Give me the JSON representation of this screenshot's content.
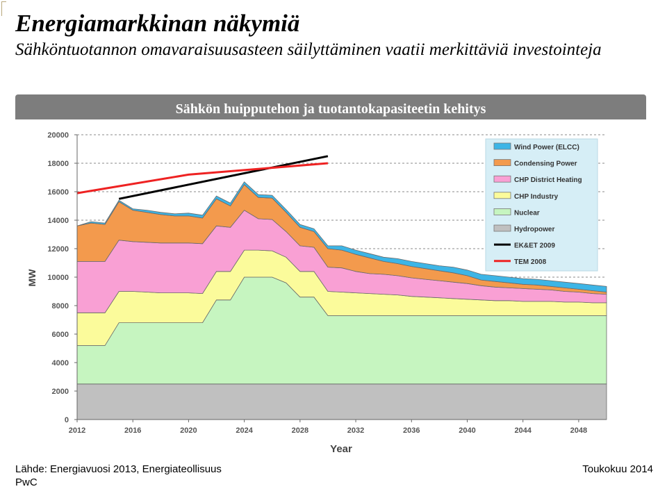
{
  "page": {
    "title": "Energiamarkkinan näkymiä",
    "subtitle": "Sähköntuotannon omavaraisuusasteen säilyttäminen vaatii merkittäviä investointeja",
    "banner": "Sähkön huipputehon ja tuotantokapasiteetin kehitys",
    "source": "Lähde: Energiavuosi 2013, Energiateollisuus",
    "company": "PwC",
    "date": "Toukokuu 2014"
  },
  "chart_data": {
    "type": "area",
    "xlabel": "Year",
    "ylabel": "MW",
    "xlim": [
      2012,
      2050
    ],
    "ylim": [
      0,
      20000
    ],
    "x_ticks": [
      2012,
      2016,
      2020,
      2024,
      2028,
      2032,
      2036,
      2040,
      2044,
      2048
    ],
    "y_ticks": [
      0,
      2000,
      4000,
      6000,
      8000,
      10000,
      12000,
      14000,
      16000,
      18000,
      20000
    ],
    "grid": "horizontal-dashed",
    "legend_position": "top-right",
    "x": [
      2012,
      2013,
      2014,
      2015,
      2016,
      2017,
      2018,
      2019,
      2020,
      2021,
      2022,
      2023,
      2024,
      2025,
      2026,
      2027,
      2028,
      2029,
      2030,
      2031,
      2032,
      2033,
      2034,
      2035,
      2036,
      2037,
      2038,
      2039,
      2040,
      2041,
      2042,
      2043,
      2044,
      2045,
      2046,
      2047,
      2048,
      2049,
      2050
    ],
    "series": [
      {
        "name": "Hydropower",
        "kind": "stack",
        "color": "#c0c0c0",
        "values": [
          2500,
          2500,
          2500,
          2500,
          2500,
          2500,
          2500,
          2500,
          2500,
          2500,
          2500,
          2500,
          2500,
          2500,
          2500,
          2500,
          2500,
          2500,
          2500,
          2500,
          2500,
          2500,
          2500,
          2500,
          2500,
          2500,
          2500,
          2500,
          2500,
          2500,
          2500,
          2500,
          2500,
          2500,
          2500,
          2500,
          2500,
          2500,
          2500
        ]
      },
      {
        "name": "Nuclear",
        "kind": "stack",
        "color": "#c6f5c0",
        "values": [
          2700,
          2700,
          2700,
          4300,
          4300,
          4300,
          4300,
          4300,
          4300,
          4300,
          5900,
          5900,
          7500,
          7500,
          7500,
          7100,
          6100,
          6100,
          4800,
          4800,
          4800,
          4800,
          4800,
          4800,
          4800,
          4800,
          4800,
          4800,
          4800,
          4800,
          4800,
          4800,
          4800,
          4800,
          4800,
          4800,
          4800,
          4800,
          4800
        ]
      },
      {
        "name": "CHP Industry",
        "kind": "stack",
        "color": "#fbfb9b",
        "values": [
          2300,
          2300,
          2300,
          2200,
          2200,
          2150,
          2100,
          2100,
          2100,
          2050,
          2000,
          2000,
          1900,
          1900,
          1850,
          1800,
          1800,
          1800,
          1700,
          1650,
          1600,
          1550,
          1500,
          1450,
          1350,
          1300,
          1250,
          1200,
          1150,
          1100,
          1050,
          1050,
          1000,
          1000,
          1000,
          950,
          950,
          900,
          900
        ]
      },
      {
        "name": "CHP District Heating",
        "kind": "stack",
        "color": "#f9a0d4",
        "values": [
          3600,
          3600,
          3600,
          3600,
          3500,
          3500,
          3500,
          3500,
          3500,
          3500,
          3200,
          3100,
          2800,
          2200,
          2200,
          1800,
          1800,
          1700,
          1700,
          1700,
          1500,
          1400,
          1400,
          1350,
          1300,
          1250,
          1200,
          1150,
          1100,
          1000,
          950,
          900,
          900,
          850,
          800,
          750,
          700,
          650,
          600
        ]
      },
      {
        "name": "Condensing Power",
        "kind": "stack",
        "color": "#f39a4d",
        "values": [
          2500,
          2700,
          2600,
          2700,
          2200,
          2100,
          2000,
          1900,
          1900,
          1800,
          1900,
          1500,
          1800,
          1500,
          1500,
          1350,
          1300,
          1100,
          1300,
          1250,
          1200,
          1100,
          900,
          850,
          800,
          750,
          700,
          650,
          550,
          400,
          400,
          350,
          300,
          300,
          250,
          250,
          200,
          200,
          150
        ]
      },
      {
        "name": "Wind Power (ELCC)",
        "kind": "stack",
        "color": "#3db5e6",
        "values": [
          0,
          100,
          100,
          100,
          100,
          150,
          150,
          150,
          200,
          200,
          200,
          200,
          200,
          200,
          200,
          200,
          200,
          200,
          200,
          300,
          300,
          300,
          300,
          350,
          350,
          350,
          350,
          400,
          400,
          400,
          400,
          400,
          400,
          400,
          400,
          400,
          400,
          400,
          400
        ]
      },
      {
        "name": "EK&ET 2009",
        "kind": "line",
        "color": "#000000",
        "points": [
          [
            2015,
            15500
          ],
          [
            2030,
            18500
          ]
        ]
      },
      {
        "name": "TEM 2008",
        "kind": "line",
        "color": "#ee2222",
        "points": [
          [
            2012,
            15900
          ],
          [
            2020,
            17200
          ],
          [
            2030,
            18000
          ]
        ]
      }
    ]
  }
}
